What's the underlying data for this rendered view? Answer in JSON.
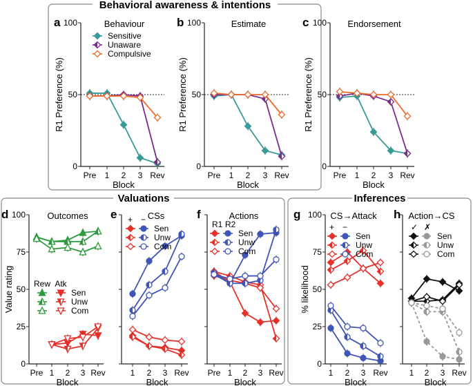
{
  "frames": [
    {
      "title": "Behavioral awareness & intentions"
    },
    {
      "title": "Valuations"
    },
    {
      "title": "Inferences"
    }
  ],
  "colors": {
    "Sensitive": "#3a9a9a",
    "Unaware": "#7b2a8f",
    "Compulsive": "#f06a2a",
    "reward": "#2e9a3e",
    "attack": "#e8302a",
    "CS_minus": "#3f55b8",
    "check": "#111111",
    "cross": "#999999"
  },
  "chart_data": [
    {
      "type": "line",
      "letter": "a",
      "title": "Behaviour",
      "xlabel": "Block",
      "ylabel": "R1 Preference (%)",
      "ylim": [
        0,
        100
      ],
      "yticks": [
        0,
        50,
        100
      ],
      "ytick_labels": true,
      "reference_line": 50,
      "categories": [
        "Pre",
        "1",
        "2",
        "3",
        "Rev"
      ],
      "legend": {
        "columns": [],
        "rows": [
          "Sensitive",
          "Unaware",
          "Compulsive"
        ]
      },
      "series": [
        {
          "name": "Sensitive",
          "color": "#3a9a9a",
          "shape": "diamond",
          "fill": "filled",
          "values": [
            51,
            51,
            29,
            6,
            2
          ]
        },
        {
          "name": "Unaware",
          "color": "#7b2a8f",
          "shape": "diamond",
          "fill": "half",
          "values": [
            49,
            49,
            50,
            49,
            3
          ]
        },
        {
          "name": "Compulsive",
          "color": "#f06a2a",
          "shape": "diamond",
          "fill": "open",
          "values": [
            49,
            49,
            49,
            48,
            34
          ]
        }
      ]
    },
    {
      "type": "line",
      "letter": "b",
      "title": "Estimate",
      "xlabel": "Block",
      "ylabel": "R1 Preference (%)",
      "ylim": [
        0,
        100
      ],
      "yticks": [
        0,
        50,
        100
      ],
      "ytick_labels": true,
      "reference_line": 50,
      "categories": [
        "Pre",
        "1",
        "2",
        "3",
        "Rev"
      ],
      "series": [
        {
          "name": "Sensitive",
          "color": "#3a9a9a",
          "shape": "diamond",
          "fill": "filled",
          "values": [
            49,
            50,
            28,
            11,
            8
          ]
        },
        {
          "name": "Unaware",
          "color": "#7b2a8f",
          "shape": "diamond",
          "fill": "half",
          "values": [
            50,
            50,
            50,
            47,
            7
          ]
        },
        {
          "name": "Compulsive",
          "color": "#f06a2a",
          "shape": "diamond",
          "fill": "open",
          "values": [
            51,
            50,
            50,
            50,
            36
          ]
        }
      ]
    },
    {
      "type": "line",
      "letter": "c",
      "title": "Endorsement",
      "xlabel": "Block",
      "ylabel": "R1 Preference (%)",
      "ylim": [
        0,
        100
      ],
      "yticks": [
        0,
        50,
        100
      ],
      "ytick_labels": true,
      "reference_line": 50,
      "categories": [
        "Pre",
        "1",
        "2",
        "3",
        "Rev"
      ],
      "series": [
        {
          "name": "Sensitive",
          "color": "#3a9a9a",
          "shape": "diamond",
          "fill": "filled",
          "values": [
            48,
            49,
            24,
            11,
            9
          ]
        },
        {
          "name": "Unaware",
          "color": "#7b2a8f",
          "shape": "diamond",
          "fill": "half",
          "values": [
            49,
            51,
            49,
            45,
            9
          ]
        },
        {
          "name": "Compulsive",
          "color": "#f06a2a",
          "shape": "diamond",
          "fill": "open",
          "values": [
            52,
            51,
            50,
            50,
            35
          ]
        }
      ]
    },
    {
      "type": "line",
      "letter": "d",
      "title": "Outcomes",
      "xlabel": "Block",
      "ylabel": "Value rating",
      "ylim": [
        0,
        100
      ],
      "yticks": [
        0,
        25,
        50,
        75,
        100
      ],
      "ytick_labels": true,
      "categories": [
        "Pre",
        "1",
        "2",
        "3",
        "Rev"
      ],
      "legend": {
        "columns": [
          "Rew",
          "Atk"
        ],
        "rows": [
          "Sen",
          "Unw",
          "Com"
        ]
      },
      "series": [
        {
          "name": "Sen",
          "group": "Rew",
          "color": "#2e9a3e",
          "shape": "triup",
          "fill": "filled",
          "values": [
            85,
            82,
            83,
            88,
            89
          ]
        },
        {
          "name": "Unw",
          "group": "Rew",
          "color": "#2e9a3e",
          "shape": "triup",
          "fill": "half",
          "values": [
            85,
            82,
            82,
            82,
            89
          ]
        },
        {
          "name": "Com",
          "group": "Rew",
          "color": "#2e9a3e",
          "shape": "triup",
          "fill": "open",
          "values": [
            84,
            77,
            78,
            75,
            79
          ]
        },
        {
          "name": "Sen",
          "group": "Atk",
          "color": "#e8302a",
          "shape": "tridown",
          "fill": "filled",
          "values": [
            null,
            13,
            14,
            20,
            19
          ]
        },
        {
          "name": "Unw",
          "group": "Atk",
          "color": "#e8302a",
          "shape": "tridown",
          "fill": "half",
          "values": [
            null,
            13,
            10,
            12,
            24
          ]
        },
        {
          "name": "Com",
          "group": "Atk",
          "color": "#e8302a",
          "shape": "tridown",
          "fill": "open",
          "values": [
            null,
            13,
            17,
            18,
            25
          ]
        }
      ]
    },
    {
      "type": "line",
      "letter": "e",
      "title": "CSs",
      "xlabel": "Block",
      "ylabel": "",
      "ylim": [
        0,
        100
      ],
      "yticks": [
        0,
        25,
        50,
        75,
        100
      ],
      "ytick_labels": false,
      "categories": [
        "1",
        "2",
        "3",
        "Rev"
      ],
      "legend": {
        "columns": [
          "+",
          "−"
        ],
        "rows": [
          "Sen",
          "Unw",
          "Com"
        ]
      },
      "series": [
        {
          "name": "Sen",
          "group": "+",
          "color": "#e8302a",
          "shape": "diamond",
          "fill": "filled",
          "values": [
            19,
            12,
            11,
            9
          ]
        },
        {
          "name": "Unw",
          "group": "+",
          "color": "#e8302a",
          "shape": "diamond",
          "fill": "half",
          "values": [
            18,
            12,
            10,
            6
          ]
        },
        {
          "name": "Com",
          "group": "+",
          "color": "#e8302a",
          "shape": "diamond",
          "fill": "open",
          "values": [
            23,
            18,
            16,
            15
          ]
        },
        {
          "name": "Sen",
          "group": "−",
          "color": "#3f55b8",
          "shape": "circle",
          "fill": "filled",
          "values": [
            47,
            69,
            79,
            86
          ]
        },
        {
          "name": "Unw",
          "group": "−",
          "color": "#3f55b8",
          "shape": "circle",
          "fill": "half",
          "values": [
            36,
            53,
            62,
            87
          ]
        },
        {
          "name": "Com",
          "group": "−",
          "color": "#3f55b8",
          "shape": "circle",
          "fill": "open",
          "values": [
            32,
            46,
            51,
            72
          ]
        }
      ]
    },
    {
      "type": "line",
      "letter": "f",
      "title": "Actions",
      "xlabel": "Block",
      "ylabel": "",
      "ylim": [
        0,
        100
      ],
      "yticks": [
        0,
        25,
        50,
        75,
        100
      ],
      "ytick_labels": false,
      "categories": [
        "Pre",
        "1",
        "2",
        "3",
        "Rev"
      ],
      "legend": {
        "columns": [
          "R1",
          "R2"
        ],
        "rows": [
          "Sen",
          "Unw",
          "Com"
        ]
      },
      "series": [
        {
          "name": "Sen",
          "group": "R1",
          "color": "#e8302a",
          "shape": "diamond",
          "fill": "filled",
          "values": [
            62,
            55,
            34,
            28,
            29
          ]
        },
        {
          "name": "Unw",
          "group": "R1",
          "color": "#e8302a",
          "shape": "diamond",
          "fill": "half",
          "values": [
            62,
            59,
            55,
            53,
            17
          ]
        },
        {
          "name": "Com",
          "group": "R1",
          "color": "#e8302a",
          "shape": "diamond",
          "fill": "open",
          "values": [
            59,
            56,
            54,
            51,
            37
          ]
        },
        {
          "name": "Sen",
          "group": "R2",
          "color": "#3f55b8",
          "shape": "circle",
          "fill": "filled",
          "values": [
            60,
            54,
            73,
            87,
            88
          ]
        },
        {
          "name": "Unw",
          "group": "R2",
          "color": "#3f55b8",
          "shape": "circle",
          "fill": "half",
          "values": [
            61,
            54,
            54,
            56,
            90
          ]
        },
        {
          "name": "Com",
          "group": "R2",
          "color": "#3f55b8",
          "shape": "circle",
          "fill": "open",
          "values": [
            60,
            57,
            59,
            59,
            70
          ]
        }
      ]
    },
    {
      "type": "line",
      "letter": "g",
      "title": "CS→Attack",
      "xlabel": "Block",
      "ylabel": "% likelihood",
      "ylim": [
        0,
        100
      ],
      "yticks": [
        0,
        25,
        50,
        75,
        100
      ],
      "ytick_labels": true,
      "categories": [
        "1",
        "2",
        "3",
        "Rev"
      ],
      "legend": {
        "columns": [
          "+",
          "−"
        ],
        "rows": [
          "Sen",
          "Unw",
          "Com"
        ]
      },
      "series": [
        {
          "name": "Sen",
          "group": "+",
          "color": "#e8302a",
          "shape": "diamond",
          "fill": "filled",
          "values": [
            68,
            75,
            64,
            54
          ]
        },
        {
          "name": "Unw",
          "group": "+",
          "color": "#e8302a",
          "shape": "diamond",
          "fill": "half",
          "values": [
            63,
            69,
            76,
            62
          ]
        },
        {
          "name": "Com",
          "group": "+",
          "color": "#e8302a",
          "shape": "diamond",
          "fill": "open",
          "values": [
            53,
            58,
            64,
            68
          ]
        },
        {
          "name": "Sen",
          "group": "−",
          "color": "#3f55b8",
          "shape": "circle",
          "fill": "filled",
          "values": [
            24,
            7,
            4,
            2
          ]
        },
        {
          "name": "Unw",
          "group": "−",
          "color": "#3f55b8",
          "shape": "circle",
          "fill": "half",
          "values": [
            36,
            18,
            12,
            5
          ]
        },
        {
          "name": "Com",
          "group": "−",
          "color": "#3f55b8",
          "shape": "circle",
          "fill": "open",
          "values": [
            39,
            25,
            24,
            14
          ]
        }
      ]
    },
    {
      "type": "line",
      "letter": "h",
      "title": "Action→CS",
      "xlabel": "Block",
      "ylabel": "",
      "ylim": [
        0,
        100
      ],
      "yticks": [
        0,
        25,
        50,
        75,
        100
      ],
      "ytick_labels": false,
      "categories": [
        "1",
        "2",
        "3",
        "Rev"
      ],
      "legend": {
        "columns": [
          "✓",
          "✗"
        ],
        "rows": [
          "Sen",
          "Unw",
          "Com"
        ]
      },
      "series": [
        {
          "name": "Sen",
          "group": "✓",
          "color": "#111111",
          "shape": "diamond",
          "fill": "filled",
          "values": [
            44,
            57,
            55,
            49
          ]
        },
        {
          "name": "Unw",
          "group": "✓",
          "color": "#111111",
          "shape": "diamond",
          "fill": "half",
          "values": [
            42,
            42,
            43,
            54
          ]
        },
        {
          "name": "Com",
          "group": "✓",
          "color": "#111111",
          "shape": "diamond",
          "fill": "open",
          "values": [
            42,
            45,
            42,
            53
          ]
        },
        {
          "name": "Sen",
          "group": "✗",
          "color": "#999999",
          "shape": "circle",
          "fill": "filled",
          "dashed": true,
          "values": [
            41,
            15,
            5,
            3
          ]
        },
        {
          "name": "Unw",
          "group": "✗",
          "color": "#999999",
          "shape": "circle",
          "fill": "half",
          "dashed": true,
          "values": [
            41,
            35,
            35,
            8
          ]
        },
        {
          "name": "Com",
          "group": "✗",
          "color": "#999999",
          "shape": "circle",
          "fill": "open",
          "dashed": true,
          "values": [
            41,
            39,
            37,
            21
          ]
        }
      ]
    }
  ]
}
